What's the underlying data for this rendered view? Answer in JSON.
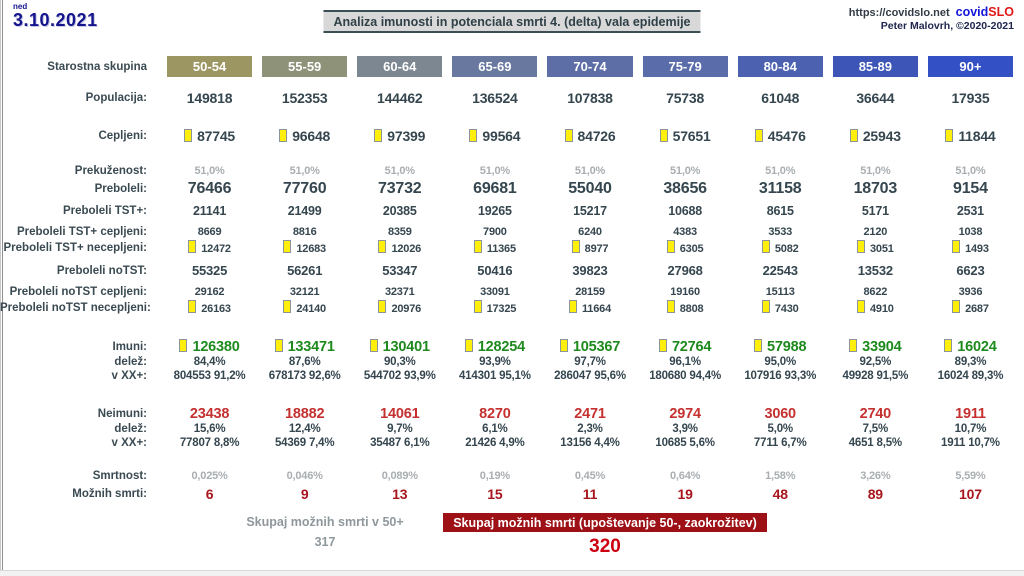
{
  "header": {
    "day_label": "ned",
    "date": "3.10.2021",
    "title": "Analiza imunosti in potenciala smrti 4. (delta) vala epidemije",
    "url": "https://covidslo.net",
    "brand": {
      "part1": "covid",
      "part2": "SLO",
      "part1_color": "#1414dc",
      "part2_color": "#e01818"
    },
    "credit": "Peter Malovrh, ©2020-2021"
  },
  "table": {
    "row_header_label": "Starostna skupina",
    "age_groups": [
      {
        "label": "50-54",
        "color": "#9c9663"
      },
      {
        "label": "55-59",
        "color": "#8d9279"
      },
      {
        "label": "60-64",
        "color": "#7d8791"
      },
      {
        "label": "65-69",
        "color": "#68789f"
      },
      {
        "label": "70-74",
        "color": "#5d6da6"
      },
      {
        "label": "75-79",
        "color": "#5a6caa"
      },
      {
        "label": "80-84",
        "color": "#4c62b0"
      },
      {
        "label": "85-89",
        "color": "#3c55b7"
      },
      {
        "label": "90+",
        "color": "#3350c4"
      }
    ],
    "rows": [
      {
        "key": "populacija",
        "label": "Populacija:",
        "type": "primary",
        "icon": false,
        "values": [
          "149818",
          "152353",
          "144462",
          "136524",
          "107838",
          "75738",
          "61048",
          "36644",
          "17935"
        ]
      },
      {
        "key": "cepljeni",
        "label": "Cepljeni:",
        "type": "primary",
        "icon": true,
        "values": [
          "87745",
          "96648",
          "97399",
          "99564",
          "84726",
          "57651",
          "45476",
          "25943",
          "11844"
        ]
      },
      {
        "key": "prekuzenost",
        "label": "Prekuženost:",
        "type": "muted",
        "icon": false,
        "values": [
          "51,0%",
          "51,0%",
          "51,0%",
          "51,0%",
          "51,0%",
          "51,0%",
          "51,0%",
          "51,0%",
          "51,0%"
        ]
      },
      {
        "key": "preboleli",
        "label": "Preboleli:",
        "type": "big",
        "icon": false,
        "values": [
          "76466",
          "77760",
          "73732",
          "69681",
          "55040",
          "38656",
          "31158",
          "18703",
          "9154"
        ]
      },
      {
        "key": "preboleli-tst",
        "label": "Preboleli TST+:",
        "type": "mid",
        "icon": false,
        "values": [
          "21141",
          "21499",
          "20385",
          "19265",
          "15217",
          "10688",
          "8615",
          "5171",
          "2531"
        ]
      },
      {
        "key": "tst-cepljeni",
        "label": "Preboleli TST+ cepljeni:",
        "type": "small",
        "icon": false,
        "values": [
          "8669",
          "8816",
          "8359",
          "7900",
          "6240",
          "4383",
          "3533",
          "2120",
          "1038"
        ]
      },
      {
        "key": "tst-necepljeni",
        "label": "Preboleli TST+ necepljeni:",
        "type": "small",
        "icon": true,
        "values": [
          "12472",
          "12683",
          "12026",
          "11365",
          "8977",
          "6305",
          "5082",
          "3051",
          "1493"
        ]
      },
      {
        "key": "preboleli-notst",
        "label": "Preboleli noTST:",
        "type": "mid2",
        "icon": false,
        "values": [
          "55325",
          "56261",
          "53347",
          "50416",
          "39823",
          "27968",
          "22543",
          "13532",
          "6623"
        ]
      },
      {
        "key": "notst-cepljeni",
        "label": "Preboleli noTST cepljeni:",
        "type": "small",
        "icon": false,
        "values": [
          "29162",
          "32121",
          "32371",
          "33091",
          "28159",
          "19160",
          "15113",
          "8622",
          "3936"
        ]
      },
      {
        "key": "notst-necepljeni",
        "label": "Preboleli noTST necepljeni:",
        "type": "small",
        "icon": true,
        "values": [
          "26163",
          "24140",
          "20976",
          "17325",
          "11664",
          "8808",
          "7430",
          "4910",
          "2687"
        ]
      },
      {
        "key": "imuni",
        "label": "Imuni:",
        "type": "green",
        "icon": true,
        "values": [
          "126380",
          "133471",
          "130401",
          "128254",
          "105367",
          "72764",
          "57988",
          "33904",
          "16024"
        ]
      },
      {
        "key": "imuni-delez",
        "label": "delež:",
        "type": "sub",
        "icon": false,
        "values": [
          "84,4%",
          "87,6%",
          "90,3%",
          "93,9%",
          "97,7%",
          "96,1%",
          "95,0%",
          "92,5%",
          "89,3%"
        ]
      },
      {
        "key": "imuni-vxx",
        "label": "v XX+:",
        "type": "sub",
        "icon": false,
        "values": [
          "804553 91,2%",
          "678173 92,6%",
          "544702 93,9%",
          "414301 95,1%",
          "286047 95,6%",
          "180680 94,4%",
          "107916 93,3%",
          "49928 91,5%",
          "16024 89,3%"
        ]
      },
      {
        "key": "neimuni",
        "label": "Neimuni:",
        "type": "red",
        "icon": false,
        "values": [
          "23438",
          "18882",
          "14061",
          "8270",
          "2471",
          "2974",
          "3060",
          "2740",
          "1911"
        ]
      },
      {
        "key": "neimuni-delez",
        "label": "delež:",
        "type": "sub",
        "icon": false,
        "values": [
          "15,6%",
          "12,4%",
          "9,7%",
          "6,1%",
          "2,3%",
          "3,9%",
          "5,0%",
          "7,5%",
          "10,7%"
        ]
      },
      {
        "key": "neimuni-vxx",
        "label": "v XX+:",
        "type": "sub",
        "icon": false,
        "values": [
          "77807 8,8%",
          "54369 7,4%",
          "35487 6,1%",
          "21426 4,9%",
          "13156 4,4%",
          "10685 5,6%",
          "7711 6,7%",
          "4651 8,5%",
          "1911 10,7%"
        ]
      },
      {
        "key": "smrtnost",
        "label": "Smrtnost:",
        "type": "muted",
        "icon": false,
        "values": [
          "0,025%",
          "0,046%",
          "0,089%",
          "0,19%",
          "0,45%",
          "0,64%",
          "1,58%",
          "3,26%",
          "5,59%"
        ]
      },
      {
        "key": "moznih-smrti",
        "label": "Možnih smrti:",
        "type": "deaths",
        "icon": false,
        "values": [
          "6",
          "9",
          "13",
          "15",
          "11",
          "19",
          "48",
          "89",
          "107"
        ]
      }
    ]
  },
  "footer": {
    "left_label": "Skupaj možnih smrti v 50+",
    "left_value": "317",
    "badge_label": "Skupaj možnih smrti (upoštevanje 50-, zaokrožitev)",
    "badge_value": "320"
  },
  "icons": {
    "yellow_marker": "small yellow rectangle marker"
  }
}
